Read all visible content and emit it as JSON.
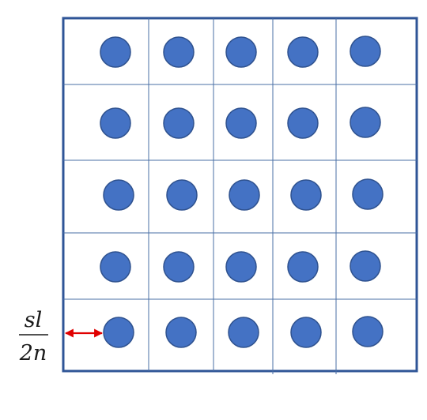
{
  "diagram": {
    "grid_rows": 5,
    "grid_cols": 5,
    "dot_count": 25,
    "dimension_label": {
      "numerator": "sl",
      "denominator": "2n"
    },
    "colors": {
      "frame": "#2f5597",
      "grid_lines": "#4a6fa5",
      "dot_fill": "#4472c4",
      "dot_stroke": "#2f528f",
      "arrow": "#e00000",
      "text": "#1a1a1a",
      "background": "#ffffff"
    }
  }
}
